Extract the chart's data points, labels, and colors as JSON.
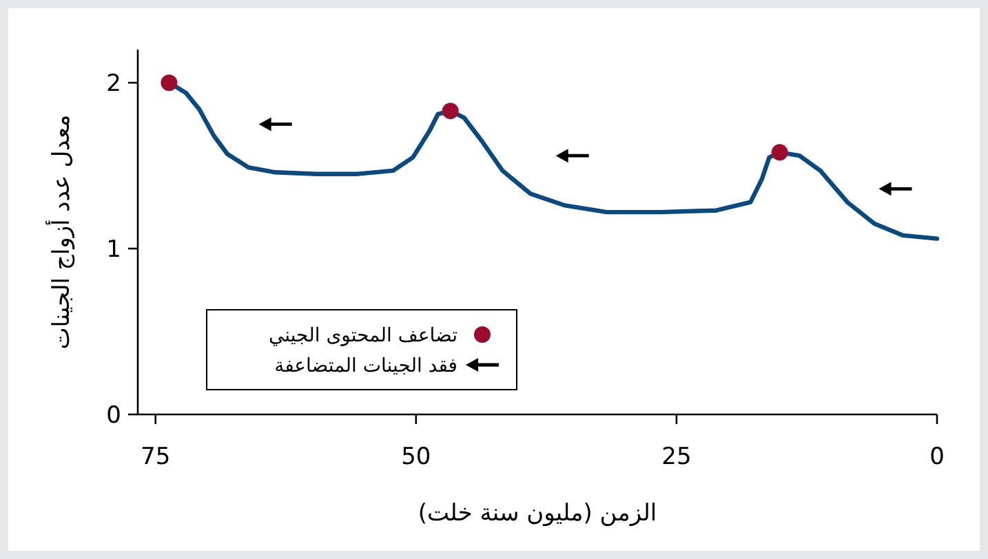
{
  "chart_data": {
    "type": "line",
    "xlabel": "الزمن (مليون سنة خلت)",
    "ylabel": "معدل عدد أزواج الجينات",
    "xlim": [
      76.7,
      0
    ],
    "ylim": [
      0,
      2.2
    ],
    "xticks": [
      75,
      50,
      25,
      0
    ],
    "yticks": [
      0,
      1,
      2
    ],
    "legend": "bottom left",
    "series": [
      {
        "color": "#0b4a7e",
        "marker": "none",
        "x": [
          73.7,
          72.1,
          70.8,
          69.4,
          68.1,
          66.1,
          63.5,
          59.5,
          55.6,
          52.2,
          50.3,
          48.7,
          47.9,
          46.7,
          45.4,
          43.7,
          41.7,
          39.0,
          35.7,
          31.7,
          26.5,
          21.2,
          17.9,
          16.8,
          16.1,
          15.1,
          13.2,
          11.2,
          8.6,
          6.0,
          3.3,
          0
        ],
        "values": [
          2.0,
          1.94,
          1.84,
          1.68,
          1.57,
          1.49,
          1.46,
          1.45,
          1.45,
          1.47,
          1.55,
          1.71,
          1.81,
          1.83,
          1.79,
          1.65,
          1.47,
          1.33,
          1.26,
          1.22,
          1.22,
          1.23,
          1.28,
          1.42,
          1.55,
          1.58,
          1.56,
          1.47,
          1.28,
          1.15,
          1.08,
          1.06
        ]
      },
      {
        "type": "scatter",
        "name": "تضاعف المحتوى الجيني",
        "color": "#9b0d2e",
        "marker": "circle",
        "x": [
          73.7,
          46.7,
          15.1
        ],
        "values": [
          2.0,
          1.83,
          1.58
        ]
      },
      {
        "type": "scatter",
        "name": "فقد الجينات المتضاعفة",
        "color": "#000000",
        "marker": "triangle",
        "x": [
          63.5,
          35.0,
          4.0
        ],
        "values": [
          1.75,
          1.56,
          1.36
        ]
      }
    ]
  }
}
